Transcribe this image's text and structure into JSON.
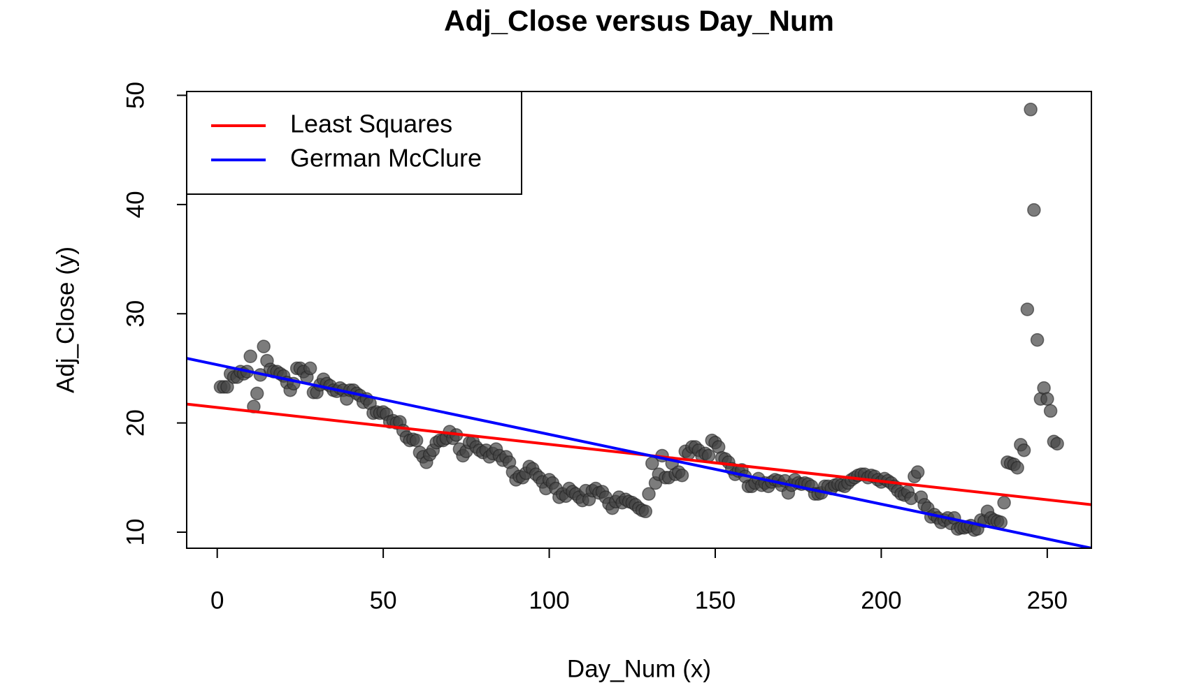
{
  "chart_data": {
    "type": "scatter",
    "title": "Adj_Close versus Day_Num",
    "x_label": "Day_Num (x)",
    "y_label": "Adj_Close (y)",
    "xlim": [
      -9.2,
      263.3
    ],
    "ylim": [
      8.53,
      50.35
    ],
    "xticks": [
      0,
      50,
      100,
      150,
      200,
      250
    ],
    "yticks": [
      10,
      20,
      30,
      40,
      50
    ],
    "point_color": "#444444",
    "legend_position": "topleft",
    "x": [
      1,
      2,
      3,
      4,
      5,
      6,
      7,
      8,
      9,
      10,
      11,
      12,
      13,
      14,
      15,
      16,
      17,
      18,
      19,
      20,
      21,
      22,
      23,
      24,
      25,
      26,
      27,
      28,
      29,
      30,
      31,
      32,
      33,
      34,
      35,
      36,
      37,
      38,
      39,
      40,
      41,
      42,
      43,
      44,
      45,
      46,
      47,
      48,
      49,
      50,
      51,
      52,
      53,
      54,
      55,
      56,
      57,
      58,
      59,
      60,
      61,
      62,
      63,
      64,
      65,
      66,
      67,
      68,
      69,
      70,
      71,
      72,
      73,
      74,
      75,
      76,
      77,
      78,
      79,
      80,
      81,
      82,
      83,
      84,
      85,
      86,
      87,
      88,
      89,
      90,
      91,
      92,
      93,
      94,
      95,
      96,
      97,
      98,
      99,
      100,
      101,
      102,
      103,
      104,
      105,
      106,
      107,
      108,
      109,
      110,
      111,
      112,
      113,
      114,
      115,
      116,
      117,
      118,
      119,
      120,
      121,
      122,
      123,
      124,
      125,
      126,
      127,
      128,
      129,
      130,
      131,
      132,
      133,
      134,
      135,
      136,
      137,
      138,
      139,
      140,
      141,
      142,
      143,
      144,
      145,
      146,
      147,
      148,
      149,
      150,
      151,
      152,
      153,
      154,
      155,
      156,
      157,
      158,
      159,
      160,
      161,
      162,
      163,
      164,
      165,
      166,
      167,
      168,
      169,
      170,
      171,
      172,
      173,
      174,
      175,
      176,
      177,
      178,
      179,
      180,
      181,
      182,
      183,
      184,
      185,
      186,
      187,
      188,
      189,
      190,
      191,
      192,
      193,
      194,
      195,
      196,
      197,
      198,
      199,
      200,
      201,
      202,
      203,
      204,
      205,
      206,
      207,
      208,
      209,
      210,
      211,
      212,
      213,
      214,
      215,
      216,
      217,
      218,
      219,
      220,
      221,
      222,
      223,
      224,
      225,
      226,
      227,
      228,
      229,
      230,
      231,
      232,
      233,
      234,
      235,
      236,
      237,
      238,
      239,
      240,
      241,
      242,
      243,
      244,
      245,
      246,
      247,
      248,
      249,
      250,
      251,
      252,
      253
    ],
    "values": [
      23.3,
      23.3,
      23.3,
      24.5,
      24.2,
      24.2,
      24.7,
      24.5,
      24.7,
      26.1,
      21.5,
      22.7,
      24.4,
      27.0,
      25.7,
      24.9,
      24.7,
      24.7,
      24.5,
      24.3,
      23.7,
      23.0,
      23.6,
      25.0,
      25.0,
      24.7,
      24.2,
      25.0,
      22.8,
      22.8,
      23.5,
      24.0,
      23.6,
      23.4,
      23.0,
      22.9,
      23.2,
      23.0,
      22.2,
      23.0,
      23.0,
      22.7,
      22.5,
      21.9,
      22.2,
      21.8,
      20.9,
      21.0,
      20.9,
      21.0,
      20.8,
      20.1,
      20.2,
      20.0,
      20.1,
      19.3,
      18.7,
      18.4,
      18.5,
      18.4,
      17.3,
      16.9,
      16.4,
      17.1,
      17.5,
      18.2,
      18.4,
      18.4,
      18.6,
      19.2,
      18.6,
      18.9,
      17.6,
      17.0,
      17.4,
      18.2,
      18.3,
      17.8,
      17.5,
      17.3,
      17.5,
      16.9,
      17.2,
      17.6,
      17.0,
      16.6,
      16.9,
      16.4,
      15.5,
      14.8,
      15.1,
      15.0,
      15.4,
      16.0,
      15.8,
      15.3,
      15.0,
      14.6,
      14.0,
      14.8,
      14.5,
      14.0,
      13.2,
      13.5,
      13.3,
      14.0,
      13.7,
      13.5,
      13.2,
      12.9,
      13.8,
      13.0,
      13.8,
      14.0,
      13.6,
      13.7,
      13.2,
      12.6,
      12.2,
      12.8,
      13.2,
      12.7,
      13.0,
      12.8,
      12.7,
      12.5,
      12.2,
      12.0,
      11.9,
      13.5,
      16.3,
      14.5,
      15.3,
      17.0,
      15.0,
      15.0,
      16.3,
      15.3,
      15.5,
      15.2,
      17.4,
      17.2,
      17.8,
      17.8,
      17.5,
      17.0,
      17.2,
      17.0,
      18.4,
      18.2,
      17.8,
      16.8,
      16.7,
      16.4,
      15.8,
      15.3,
      15.6,
      15.7,
      15.1,
      14.2,
      14.2,
      14.5,
      14.9,
      14.3,
      14.5,
      14.2,
      14.6,
      14.8,
      14.7,
      14.3,
      14.7,
      13.6,
      14.3,
      14.8,
      14.5,
      14.4,
      14.5,
      14.4,
      14.2,
      13.5,
      13.5,
      13.6,
      14.2,
      14.2,
      14.0,
      14.3,
      14.4,
      14.3,
      14.2,
      14.5,
      14.8,
      15.0,
      15.2,
      15.3,
      15.3,
      15.0,
      15.2,
      15.1,
      14.8,
      14.6,
      14.9,
      14.7,
      14.5,
      14.2,
      13.8,
      13.5,
      13.4,
      13.7,
      13.1,
      15.1,
      15.5,
      13.2,
      12.5,
      12.2,
      11.4,
      11.6,
      11.3,
      10.9,
      11.1,
      11.3,
      10.8,
      11.3,
      10.3,
      10.4,
      10.4,
      10.5,
      10.6,
      10.2,
      10.3,
      11.1,
      11.0,
      11.9,
      11.3,
      11.1,
      11.0,
      10.9,
      12.7,
      16.4,
      16.3,
      16.2,
      15.9,
      18.0,
      17.5,
      30.4,
      48.7,
      39.5,
      27.6,
      22.2,
      23.2,
      22.2,
      21.1,
      18.3,
      18.1
    ],
    "fits": [
      {
        "name": "Least Squares",
        "color": "#ff0000",
        "intercept": 21.42,
        "slope": -0.0338
      },
      {
        "name": "German McClure",
        "color": "#0000ff",
        "intercept": 25.33,
        "slope": -0.0638
      }
    ]
  }
}
